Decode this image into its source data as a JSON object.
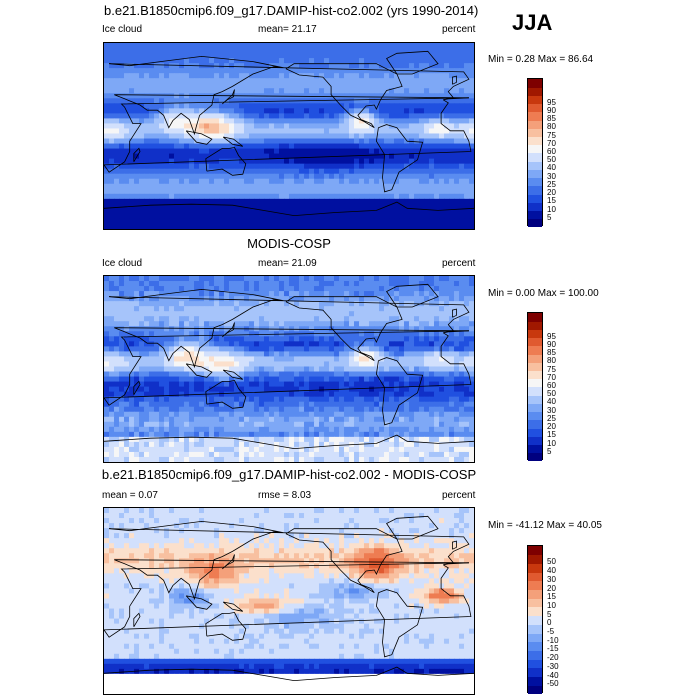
{
  "season": "JJA",
  "panels": [
    {
      "title": "b.e21.B1850cmip6.f09_g17.DAMIP-hist-co2.002 (yrs 1990-2014)",
      "left": "Ice cloud",
      "center": "mean=  21.17",
      "right": "percent",
      "minmax": "Min =  0.28 Max =  86.64",
      "kind": "model"
    },
    {
      "title": "MODIS-COSP",
      "left": "Ice cloud",
      "center": "mean=  21.09",
      "right": "percent",
      "minmax": "Min =  0.00 Max = 100.00",
      "kind": "obs"
    },
    {
      "title": "b.e21.B1850cmip6.f09_g17.DAMIP-hist-co2.002 - MODIS-COSP",
      "left": "mean =  0.07",
      "center": "rmse =  8.03",
      "right": "percent",
      "minmax": "Min = -41.12 Max =  40.05",
      "kind": "diff"
    }
  ],
  "chart_data": [
    {
      "type": "heatmap",
      "title": "b.e21.B1850cmip6.f09_g17.DAMIP-hist-co2.002 (yrs 1990-2014)",
      "variable": "Ice cloud",
      "units": "percent",
      "mean": 21.17,
      "min": 0.28,
      "max": 86.64,
      "colorbar_levels": [
        5,
        10,
        15,
        20,
        25,
        30,
        40,
        50,
        60,
        70,
        75,
        80,
        85,
        90,
        95
      ],
      "colorbar_colors": [
        "#00007f",
        "#0010a0",
        "#1030c8",
        "#2050e0",
        "#3c6ee8",
        "#5a8cf0",
        "#7ea8f6",
        "#a6c4fa",
        "#d2e0fc",
        "#f6f6f6",
        "#fbe0cc",
        "#f8c0a0",
        "#f4a07a",
        "#ee7c52",
        "#e05a30",
        "#c8380e",
        "#a01800",
        "#7e0000"
      ]
    },
    {
      "type": "heatmap",
      "title": "MODIS-COSP",
      "variable": "Ice cloud",
      "units": "percent",
      "mean": 21.09,
      "min": 0.0,
      "max": 100.0,
      "colorbar_levels": [
        5,
        10,
        15,
        20,
        25,
        30,
        40,
        50,
        60,
        70,
        75,
        80,
        85,
        90,
        95
      ],
      "colorbar_colors": [
        "#00007f",
        "#0010a0",
        "#1030c8",
        "#2050e0",
        "#3c6ee8",
        "#5a8cf0",
        "#7ea8f6",
        "#a6c4fa",
        "#d2e0fc",
        "#f6f6f6",
        "#fbe0cc",
        "#f8c0a0",
        "#f4a07a",
        "#ee7c52",
        "#e05a30",
        "#c8380e",
        "#a01800",
        "#7e0000"
      ]
    },
    {
      "type": "heatmap",
      "title": "b.e21.B1850cmip6.f09_g17.DAMIP-hist-co2.002 - MODIS-COSP",
      "units": "percent",
      "mean": 0.07,
      "rmse": 8.03,
      "min": -41.12,
      "max": 40.05,
      "colorbar_levels": [
        -50,
        -40,
        -30,
        -20,
        -15,
        -10,
        -5,
        0,
        5,
        10,
        15,
        20,
        30,
        40,
        50
      ],
      "colorbar_colors": [
        "#00007f",
        "#0010a0",
        "#1030c8",
        "#2050e0",
        "#3c6ee8",
        "#5a8cf0",
        "#7ea8f6",
        "#a6c4fa",
        "#d2e0fc",
        "#fbe0cc",
        "#f8c0a0",
        "#f4a07a",
        "#ee7c52",
        "#e05a30",
        "#c8380e",
        "#a01800",
        "#7e0000"
      ]
    }
  ]
}
